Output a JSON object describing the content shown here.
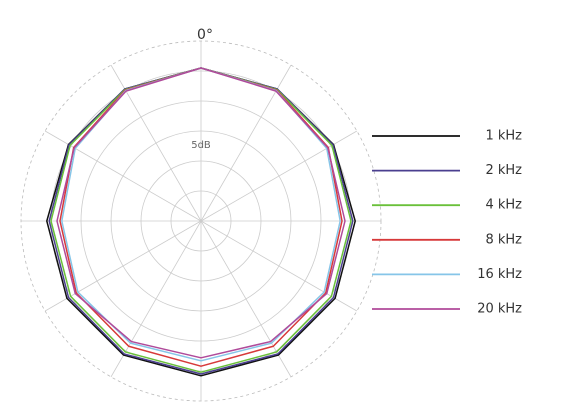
{
  "chart_data": {
    "type": "polar",
    "angle_label": "0°",
    "annotation": "5dB",
    "rlim": [
      -30,
      0
    ],
    "rticks": [
      -25,
      -20,
      -15,
      -10,
      -5,
      0
    ],
    "angles": [
      0,
      30,
      60,
      90,
      120,
      150,
      180,
      210,
      240,
      270,
      300,
      330
    ],
    "series": [
      {
        "name": "1 kHz",
        "color": "#111111",
        "values": [
          -4.5,
          -4.6,
          -4.5,
          -4.3,
          -4.2,
          -4.2,
          -4.2,
          -4.2,
          -4.2,
          -4.3,
          -4.5,
          -4.6
        ]
      },
      {
        "name": "2 kHz",
        "color": "#4a3f8f",
        "values": [
          -4.5,
          -4.6,
          -4.6,
          -4.7,
          -4.5,
          -4.4,
          -4.5,
          -4.4,
          -4.5,
          -4.7,
          -4.6,
          -4.6
        ]
      },
      {
        "name": "4 kHz",
        "color": "#6ac03a",
        "values": [
          -4.5,
          -4.7,
          -4.8,
          -5.0,
          -4.9,
          -4.8,
          -4.8,
          -4.8,
          -4.9,
          -5.0,
          -4.8,
          -4.7
        ]
      },
      {
        "name": "8 kHz",
        "color": "#d7393a",
        "values": [
          -4.5,
          -4.8,
          -5.5,
          -6.5,
          -6.0,
          -5.9,
          -5.8,
          -5.9,
          -6.0,
          -6.5,
          -5.5,
          -4.8
        ]
      },
      {
        "name": "16 kHz",
        "color": "#86c5e8",
        "values": [
          -4.5,
          -4.9,
          -5.8,
          -6.8,
          -6.3,
          -6.5,
          -6.7,
          -6.5,
          -6.3,
          -6.8,
          -5.8,
          -4.9
        ]
      },
      {
        "name": "20 kHz",
        "color": "#b04a9a",
        "values": [
          -4.5,
          -5.0,
          -5.6,
          -6.0,
          -5.8,
          -6.8,
          -7.2,
          -6.8,
          -5.8,
          -6.0,
          -5.6,
          -5.0
        ]
      }
    ]
  }
}
